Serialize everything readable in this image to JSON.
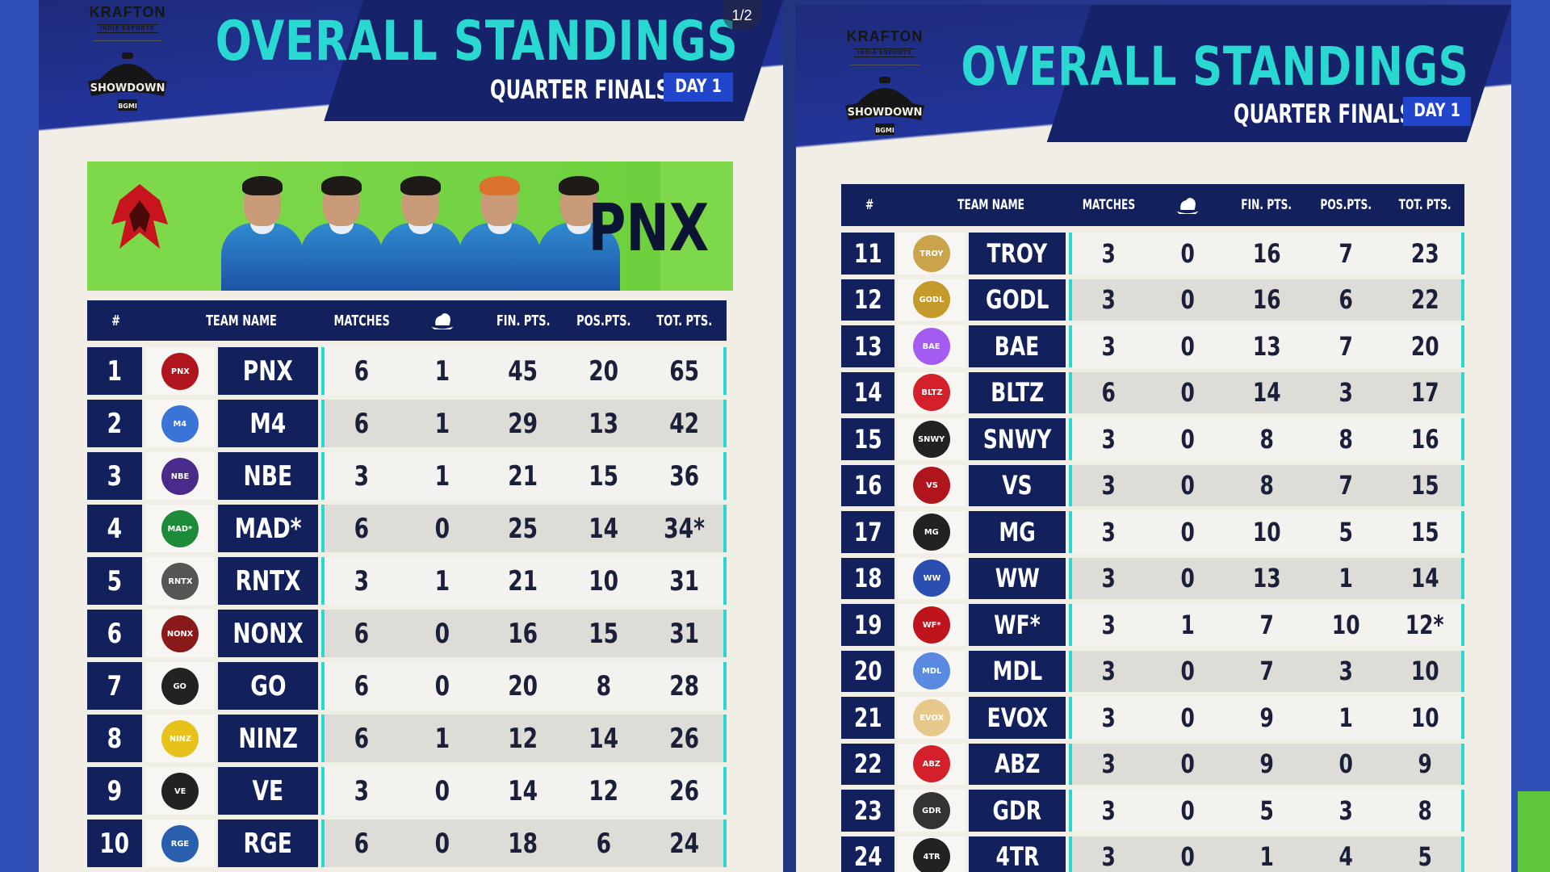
{
  "page_indicator": "1/2",
  "posters": [
    {
      "brand": "KRAFTON",
      "brand_sub": "INDIA ESPORTS",
      "event_logo_text": "SHOWDOWN",
      "event_logo_sub": "BGMI",
      "title": "OVERALL STANDINGS",
      "subtitle": "QUARTER FINALS",
      "day": "DAY 1",
      "banner_team": "PNX",
      "columns": [
        "#",
        "TEAM NAME",
        "MATCHES",
        "chicken-dinner-icon",
        "FIN. PTS.",
        "POS.PTS.",
        "TOT. PTS."
      ],
      "rows": [
        {
          "rank": "1",
          "logo": "pnx-logo",
          "team": "PNX",
          "matches": "6",
          "wins": "1",
          "fin": "45",
          "pos": "20",
          "tot": "65"
        },
        {
          "rank": "2",
          "logo": "m4-logo",
          "team": "M4",
          "matches": "6",
          "wins": "1",
          "fin": "29",
          "pos": "13",
          "tot": "42"
        },
        {
          "rank": "3",
          "logo": "nbe-logo",
          "team": "NBE",
          "matches": "3",
          "wins": "1",
          "fin": "21",
          "pos": "15",
          "tot": "36"
        },
        {
          "rank": "4",
          "logo": "mad-logo",
          "team": "MAD*",
          "matches": "6",
          "wins": "0",
          "fin": "25",
          "pos": "14",
          "tot": "34*"
        },
        {
          "rank": "5",
          "logo": "rntx-logo",
          "team": "RNTX",
          "matches": "3",
          "wins": "1",
          "fin": "21",
          "pos": "10",
          "tot": "31"
        },
        {
          "rank": "6",
          "logo": "nonx-logo",
          "team": "NONX",
          "matches": "6",
          "wins": "0",
          "fin": "16",
          "pos": "15",
          "tot": "31"
        },
        {
          "rank": "7",
          "logo": "go-logo",
          "team": "GO",
          "matches": "6",
          "wins": "0",
          "fin": "20",
          "pos": "8",
          "tot": "28"
        },
        {
          "rank": "8",
          "logo": "ninz-logo",
          "team": "NINZ",
          "matches": "6",
          "wins": "1",
          "fin": "12",
          "pos": "14",
          "tot": "26"
        },
        {
          "rank": "9",
          "logo": "ve-logo",
          "team": "VE",
          "matches": "3",
          "wins": "0",
          "fin": "14",
          "pos": "12",
          "tot": "26"
        },
        {
          "rank": "10",
          "logo": "rge-logo",
          "team": "RGE",
          "matches": "6",
          "wins": "0",
          "fin": "18",
          "pos": "6",
          "tot": "24"
        }
      ]
    },
    {
      "brand": "KRAFTON",
      "brand_sub": "INDIA ESPORTS",
      "event_logo_text": "SHOWDOWN",
      "event_logo_sub": "BGMI",
      "title": "OVERALL STANDINGS",
      "subtitle": "QUARTER FINALS",
      "day": "DAY 1",
      "columns": [
        "#",
        "TEAM NAME",
        "MATCHES",
        "chicken-dinner-icon",
        "FIN. PTS.",
        "POS.PTS.",
        "TOT. PTS."
      ],
      "rows": [
        {
          "rank": "11",
          "logo": "troy-logo",
          "team": "TROY",
          "matches": "3",
          "wins": "0",
          "fin": "16",
          "pos": "7",
          "tot": "23"
        },
        {
          "rank": "12",
          "logo": "godl-logo",
          "team": "GODL",
          "matches": "3",
          "wins": "0",
          "fin": "16",
          "pos": "6",
          "tot": "22"
        },
        {
          "rank": "13",
          "logo": "bae-logo",
          "team": "BAE",
          "matches": "3",
          "wins": "0",
          "fin": "13",
          "pos": "7",
          "tot": "20"
        },
        {
          "rank": "14",
          "logo": "bltz-logo",
          "team": "BLTZ",
          "matches": "6",
          "wins": "0",
          "fin": "14",
          "pos": "3",
          "tot": "17"
        },
        {
          "rank": "15",
          "logo": "snwy-logo",
          "team": "SNWY",
          "matches": "3",
          "wins": "0",
          "fin": "8",
          "pos": "8",
          "tot": "16"
        },
        {
          "rank": "16",
          "logo": "vs-logo",
          "team": "VS",
          "matches": "3",
          "wins": "0",
          "fin": "8",
          "pos": "7",
          "tot": "15"
        },
        {
          "rank": "17",
          "logo": "mg-logo",
          "team": "MG",
          "matches": "3",
          "wins": "0",
          "fin": "10",
          "pos": "5",
          "tot": "15"
        },
        {
          "rank": "18",
          "logo": "ww-logo",
          "team": "WW",
          "matches": "3",
          "wins": "0",
          "fin": "13",
          "pos": "1",
          "tot": "14"
        },
        {
          "rank": "19",
          "logo": "wf-logo",
          "team": "WF*",
          "matches": "3",
          "wins": "1",
          "fin": "7",
          "pos": "10",
          "tot": "12*"
        },
        {
          "rank": "20",
          "logo": "mdl-logo",
          "team": "MDL",
          "matches": "3",
          "wins": "0",
          "fin": "7",
          "pos": "3",
          "tot": "10"
        },
        {
          "rank": "21",
          "logo": "evox-logo",
          "team": "EVOX",
          "matches": "3",
          "wins": "0",
          "fin": "9",
          "pos": "1",
          "tot": "10"
        },
        {
          "rank": "22",
          "logo": "abz-logo",
          "team": "ABZ",
          "matches": "3",
          "wins": "0",
          "fin": "9",
          "pos": "0",
          "tot": "9"
        },
        {
          "rank": "23",
          "logo": "gdr-logo",
          "team": "GDR",
          "matches": "3",
          "wins": "0",
          "fin": "5",
          "pos": "3",
          "tot": "8"
        },
        {
          "rank": "24",
          "logo": "4tr-logo",
          "team": "4TR",
          "matches": "3",
          "wins": "0",
          "fin": "1",
          "pos": "4",
          "tot": "5"
        }
      ]
    }
  ],
  "colors": {
    "navy": "#12205c",
    "cyan": "#2ad8d2",
    "badge_blue": "#2146cc",
    "banner_green": "#7dd84a",
    "row_light": "#f3f2ee",
    "row_alt": "#dedcd6"
  }
}
